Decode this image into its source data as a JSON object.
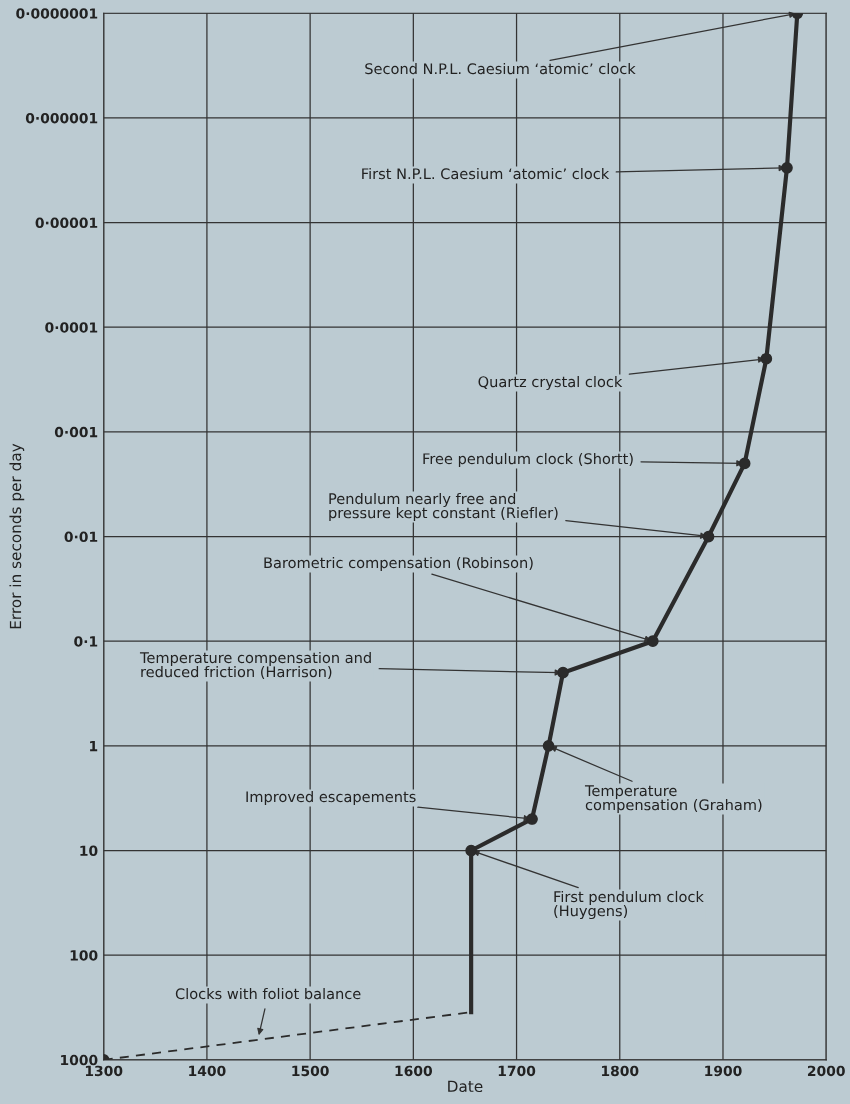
{
  "chart_data": {
    "type": "line",
    "xlabel": "Date",
    "ylabel": "Error in seconds per day",
    "log": "y",
    "grid": true,
    "xlim": [
      1300,
      2000
    ],
    "xticks": [
      1300,
      1400,
      1500,
      1600,
      1700,
      1800,
      1900,
      2000
    ],
    "ylim": [
      1000,
      1e-07
    ],
    "yticks": [
      1000,
      100,
      10,
      1,
      {
        "value": 0.1,
        "label": "0·1"
      },
      {
        "value": 0.01,
        "label": "0·01"
      },
      {
        "value": 0.001,
        "label": "0·001"
      },
      {
        "value": 0.0001,
        "label": "0·0001"
      },
      {
        "value": 1e-05,
        "label": "0·00001"
      },
      {
        "value": 1e-06,
        "label": "0·000001"
      },
      {
        "value": 1e-07,
        "label": "0·0000001"
      }
    ],
    "series": [
      {
        "line_style": "dashed",
        "marker": "none",
        "color": "#2b2b2b",
        "x": [
          1300,
          1656
        ],
        "values": [
          1000,
          350
        ]
      },
      {
        "line_style": "solid",
        "marker": "none",
        "color": "#2b2b2b",
        "x": [
          1656,
          1656,
          1715,
          1731,
          1745,
          1832,
          1886,
          1921,
          1942,
          1962,
          1972
        ],
        "values": [
          350,
          10,
          5,
          1,
          0.2,
          0.1,
          0.01,
          0.002,
          0.0002,
          3e-06,
          1e-07
        ]
      },
      {
        "type": "scatter",
        "marker": "circle",
        "color": "#2b2b2b",
        "x": [
          1300,
          1656,
          1715,
          1731,
          1745,
          1832,
          1886,
          1921,
          1942,
          1962,
          1972
        ],
        "values": [
          1000,
          10,
          5,
          1,
          0.2,
          0.1,
          0.01,
          0.002,
          0.0002,
          3e-06,
          1e-07
        ]
      }
    ],
    "annotations": [
      {
        "text": "Second N.P.L. Caesium ‘atomic’ clock",
        "x": 1972,
        "y": 1e-07
      },
      {
        "text": "First N.P.L. Caesium ‘atomic’ clock",
        "x": 1962,
        "y": 3e-06
      },
      {
        "text": "Quartz crystal clock",
        "x": 1942,
        "y": 0.0002
      },
      {
        "text": "Free pendulum clock (Shortt)",
        "x": 1921,
        "y": 0.002
      },
      {
        "text": "Pendulum nearly free and\npressure kept constant (Riefler)",
        "x": 1886,
        "y": 0.01
      },
      {
        "text": "Barometric compensation (Robinson)",
        "x": 1832,
        "y": 0.1
      },
      {
        "text": "Temperature compensation and\nreduced friction (Harrison)",
        "x": 1745,
        "y": 0.2
      },
      {
        "text": "Temperature\ncompensation (Graham)",
        "x": 1731,
        "y": 1
      },
      {
        "text": "Improved escapements",
        "x": 1715,
        "y": 5
      },
      {
        "text": "First pendulum clock\n(Huygens)",
        "x": 1656,
        "y": 10
      },
      {
        "text": "Clocks with foliot balance",
        "x": 1450,
        "y": 600
      }
    ]
  }
}
